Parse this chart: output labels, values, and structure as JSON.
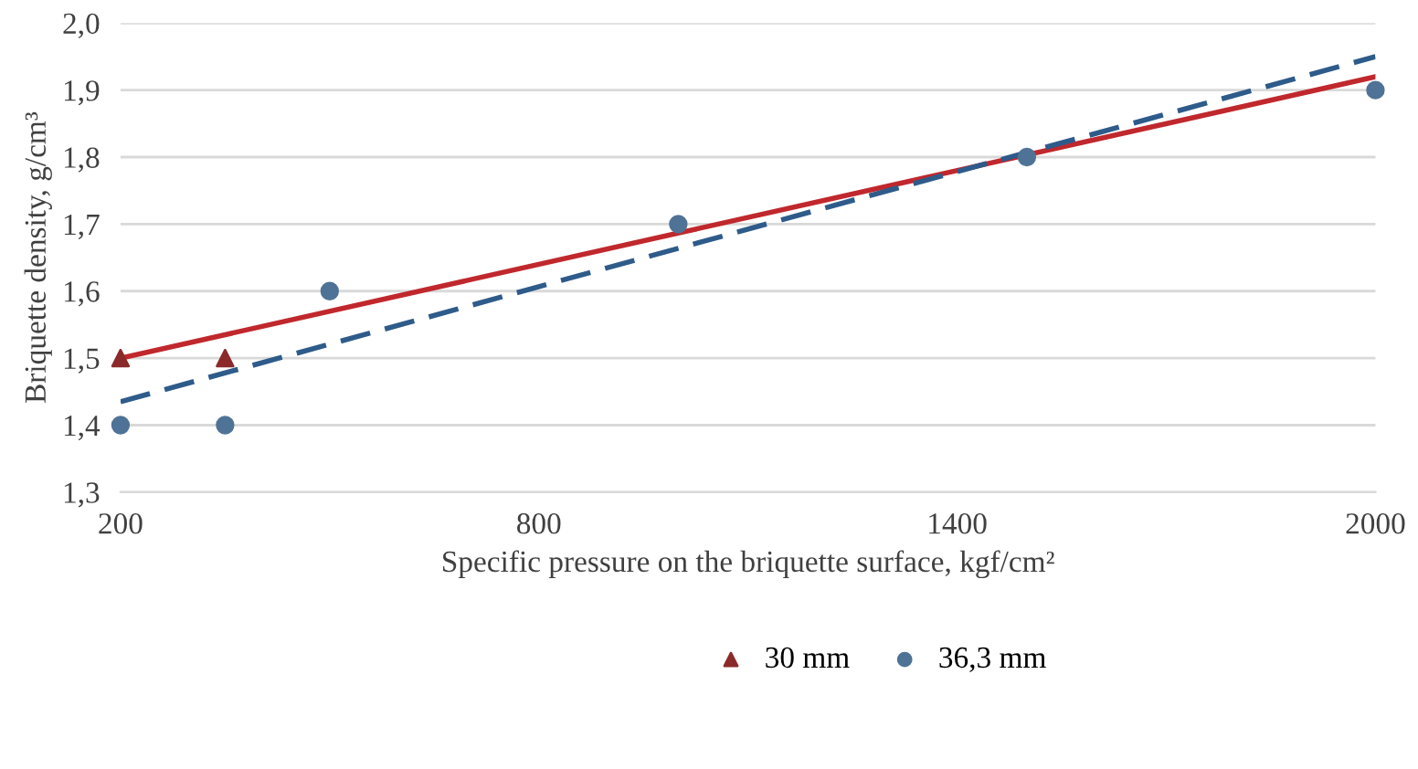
{
  "chart_data": {
    "type": "scatter",
    "xlabel": "Specific pressure on the briquette surface, kgf/cm²",
    "ylabel": "Briquette density, g/cm³",
    "xlim": [
      200,
      2000
    ],
    "xticks": [
      200,
      800,
      1400,
      2000
    ],
    "ylim": [
      1.3,
      2.0
    ],
    "yticks": [
      {
        "value": 1.3,
        "label": "1,3"
      },
      {
        "value": 1.4,
        "label": "1,4"
      },
      {
        "value": 1.5,
        "label": "1,5"
      },
      {
        "value": 1.6,
        "label": "1,6"
      },
      {
        "value": 1.7,
        "label": "1,7"
      },
      {
        "value": 1.8,
        "label": "1,8"
      },
      {
        "value": 1.9,
        "label": "1,9"
      },
      {
        "value": 2.0,
        "label": "2,0"
      }
    ],
    "grid": "y",
    "legend": "bottom",
    "series": [
      {
        "type": "line",
        "color": "#c0282d",
        "x": [
          200,
          2000
        ],
        "values": [
          1.5,
          1.92
        ],
        "marker": "none",
        "line_style": "solid"
      },
      {
        "type": "line",
        "color": "#2e5b8a",
        "x": [
          200,
          2000
        ],
        "values": [
          1.435,
          1.95
        ],
        "marker": "none",
        "line_style": "dashed"
      },
      {
        "name": "30 mm",
        "color": "#8b2a2a",
        "x": [
          200,
          350
        ],
        "values": [
          1.5,
          1.5
        ],
        "marker": "triangle"
      },
      {
        "name": "36,3 mm",
        "color": "#4f7396",
        "x": [
          200,
          350,
          500,
          1000,
          1500,
          2000
        ],
        "values": [
          1.4,
          1.4,
          1.6,
          1.7,
          1.8,
          1.9
        ],
        "marker": "circle"
      }
    ]
  }
}
